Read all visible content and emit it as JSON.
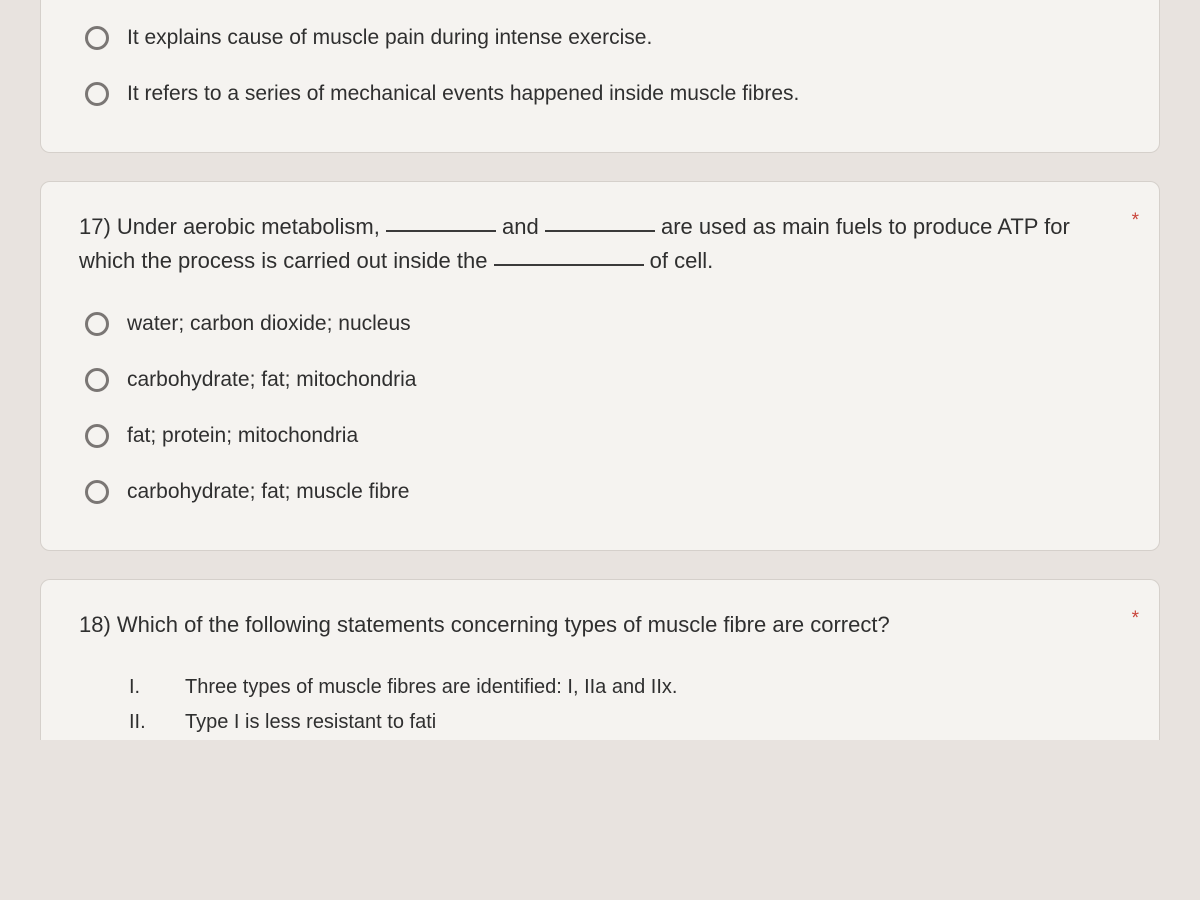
{
  "colors": {
    "page_bg": "#e8e3df",
    "card_bg": "#f5f3f0",
    "card_border": "#d5d0cb",
    "text": "#2f2f2f",
    "radio_border": "#7a7674",
    "required": "#c9443a",
    "blank_line": "#3a3a3a"
  },
  "typography": {
    "question_fontsize": 22,
    "option_fontsize": 21,
    "roman_fontsize": 20
  },
  "q16_tail": {
    "options": [
      "It explains cause of muscle pain during intense exercise.",
      "It refers to a series of mechanical events happened inside muscle fibres."
    ]
  },
  "q17": {
    "required_mark": "*",
    "prompt_prefix": "17)  Under aerobic metabolism, ",
    "prompt_mid1": " and ",
    "prompt_mid2": " are used as main fuels to produce ATP for which the process is carried out inside the ",
    "prompt_suffix": " of cell.",
    "options": [
      "water; carbon dioxide; nucleus",
      "carbohydrate; fat; mitochondria",
      "fat; protein; mitochondria",
      "carbohydrate; fat; muscle fibre"
    ]
  },
  "q18": {
    "required_mark": "*",
    "prompt": "18)  Which of the following statements concerning types of muscle fibre are correct?",
    "statements": [
      {
        "num": "I.",
        "text": "Three types of muscle fibres are identified: I, IIa and IIx."
      },
      {
        "num": "II.",
        "text": "Type I is less resistant to fati"
      }
    ]
  }
}
